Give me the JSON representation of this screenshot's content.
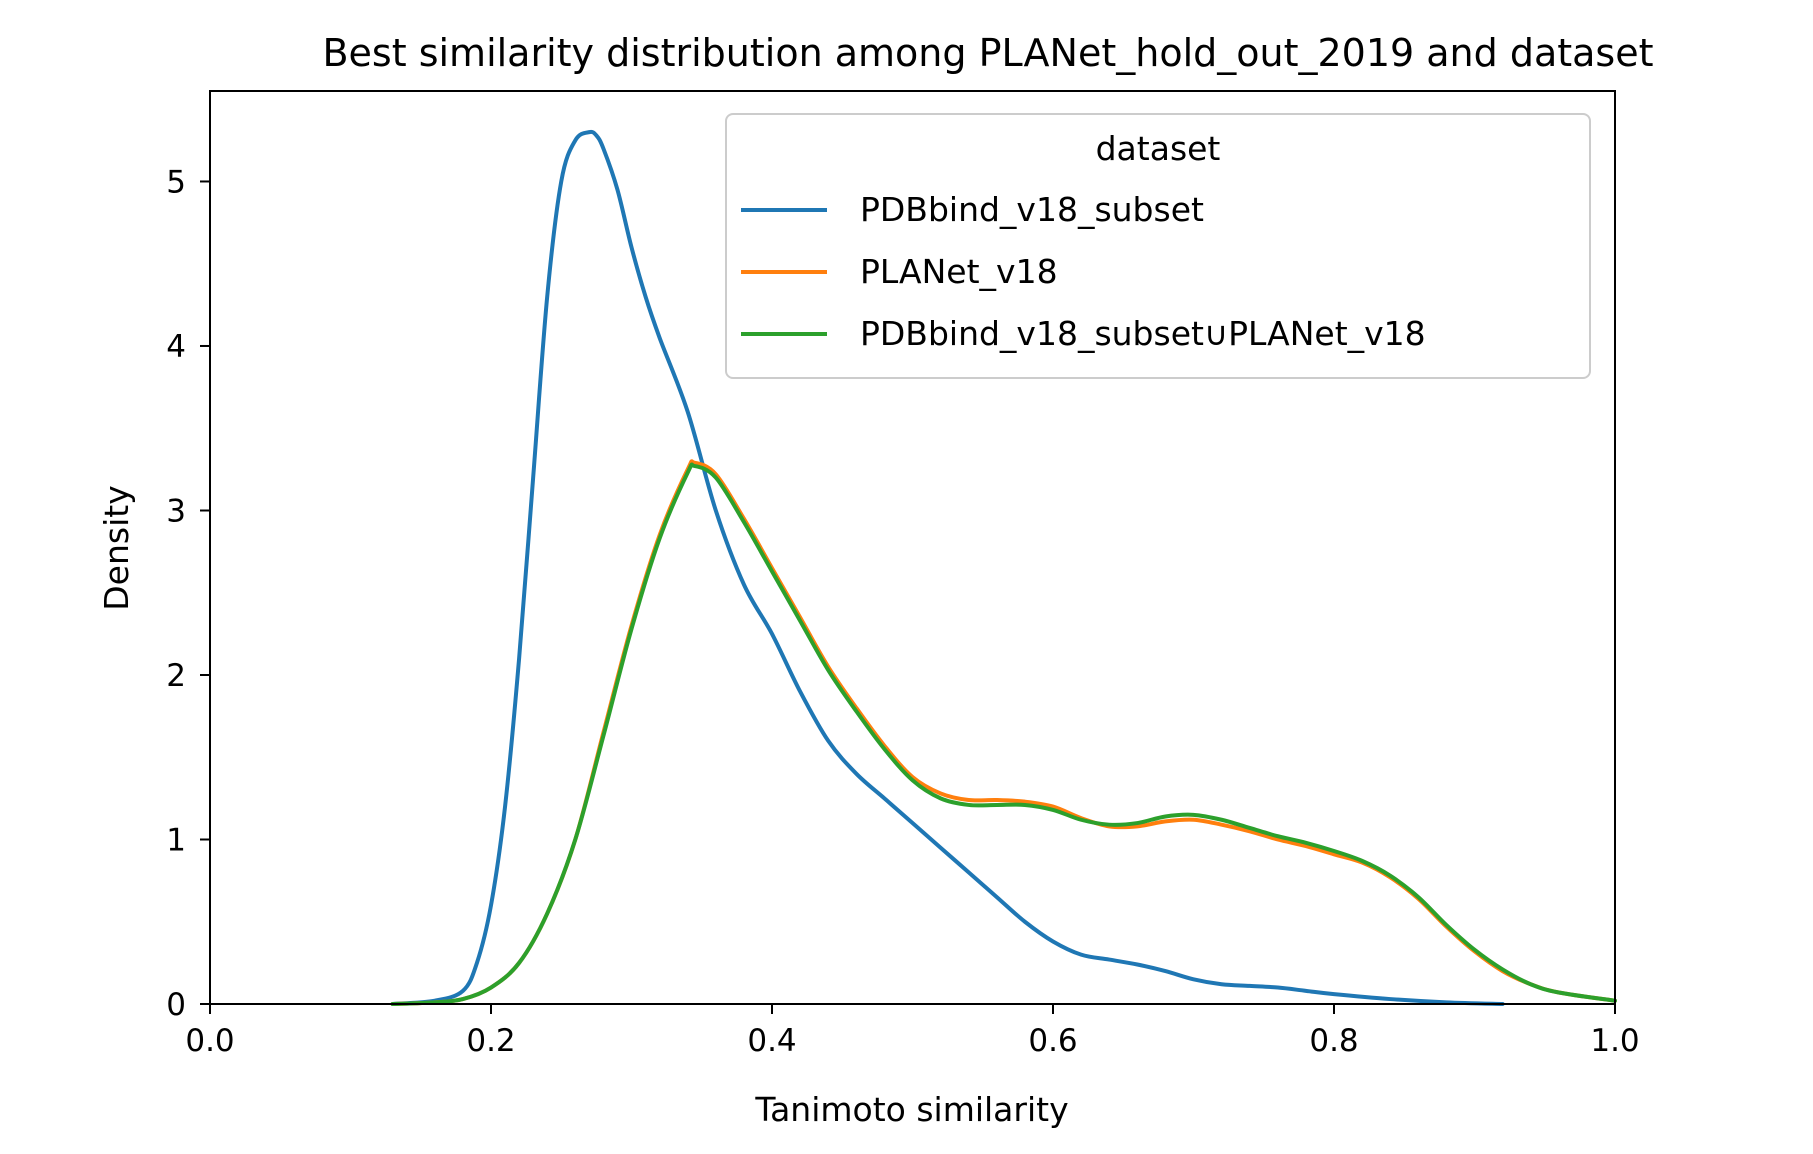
{
  "chart_data": {
    "type": "line",
    "title": "Best similarity distribution among PLANet_hold_out_2019 and dataset",
    "xlabel": "Tanimoto similarity",
    "ylabel": "Density",
    "xlim": [
      0.0,
      1.0
    ],
    "ylim": [
      0.0,
      5.55
    ],
    "xticks": [
      0.0,
      0.2,
      0.4,
      0.6,
      0.8,
      1.0
    ],
    "xtick_labels": [
      "0.0",
      "0.2",
      "0.4",
      "0.6",
      "0.8",
      "1.0"
    ],
    "yticks": [
      0,
      1,
      2,
      3,
      4,
      5
    ],
    "ytick_labels": [
      "0",
      "1",
      "2",
      "3",
      "4",
      "5"
    ],
    "grid": false,
    "legend": {
      "title": "dataset",
      "placement": "top-right"
    },
    "series": [
      {
        "name": "PDBbind_v18_subset",
        "color": "#1f77b4",
        "x": [
          0.13,
          0.16,
          0.18,
          0.19,
          0.2,
          0.21,
          0.22,
          0.23,
          0.24,
          0.25,
          0.26,
          0.27,
          0.275,
          0.28,
          0.29,
          0.3,
          0.31,
          0.32,
          0.34,
          0.36,
          0.38,
          0.4,
          0.42,
          0.44,
          0.46,
          0.48,
          0.5,
          0.52,
          0.54,
          0.56,
          0.58,
          0.6,
          0.62,
          0.64,
          0.66,
          0.68,
          0.7,
          0.72,
          0.74,
          0.76,
          0.78,
          0.8,
          0.84,
          0.88,
          0.92
        ],
        "y": [
          0.0,
          0.02,
          0.08,
          0.25,
          0.6,
          1.2,
          2.1,
          3.2,
          4.3,
          5.0,
          5.25,
          5.3,
          5.28,
          5.2,
          4.95,
          4.6,
          4.3,
          4.05,
          3.6,
          3.0,
          2.55,
          2.25,
          1.9,
          1.6,
          1.4,
          1.25,
          1.1,
          0.95,
          0.8,
          0.65,
          0.5,
          0.38,
          0.3,
          0.27,
          0.24,
          0.2,
          0.15,
          0.12,
          0.11,
          0.1,
          0.08,
          0.06,
          0.03,
          0.01,
          0.0
        ]
      },
      {
        "name": "PLANet_v18",
        "color": "#ff7f0e",
        "x": [
          0.13,
          0.16,
          0.18,
          0.2,
          0.22,
          0.24,
          0.26,
          0.28,
          0.3,
          0.32,
          0.34,
          0.345,
          0.36,
          0.38,
          0.4,
          0.42,
          0.44,
          0.46,
          0.48,
          0.5,
          0.52,
          0.54,
          0.56,
          0.58,
          0.6,
          0.62,
          0.64,
          0.66,
          0.68,
          0.7,
          0.72,
          0.74,
          0.76,
          0.78,
          0.8,
          0.82,
          0.84,
          0.86,
          0.88,
          0.9,
          0.92,
          0.94,
          0.96,
          1.0
        ],
        "y": [
          0.0,
          0.01,
          0.03,
          0.1,
          0.25,
          0.55,
          1.0,
          1.65,
          2.3,
          2.85,
          3.25,
          3.29,
          3.22,
          2.95,
          2.65,
          2.35,
          2.05,
          1.8,
          1.57,
          1.38,
          1.28,
          1.24,
          1.24,
          1.23,
          1.2,
          1.13,
          1.08,
          1.08,
          1.11,
          1.12,
          1.09,
          1.05,
          1.0,
          0.96,
          0.91,
          0.86,
          0.77,
          0.64,
          0.47,
          0.32,
          0.2,
          0.12,
          0.07,
          0.02
        ]
      },
      {
        "name": "PDBbind_v18_subset∪PLANet_v18",
        "color": "#2ca02c",
        "x": [
          0.13,
          0.16,
          0.18,
          0.2,
          0.22,
          0.24,
          0.26,
          0.28,
          0.3,
          0.32,
          0.34,
          0.345,
          0.36,
          0.38,
          0.4,
          0.42,
          0.44,
          0.46,
          0.48,
          0.5,
          0.52,
          0.54,
          0.56,
          0.58,
          0.6,
          0.62,
          0.64,
          0.66,
          0.68,
          0.7,
          0.72,
          0.74,
          0.76,
          0.78,
          0.8,
          0.82,
          0.84,
          0.86,
          0.88,
          0.9,
          0.92,
          0.94,
          0.96,
          1.0
        ],
        "y": [
          0.0,
          0.01,
          0.03,
          0.1,
          0.25,
          0.55,
          1.0,
          1.63,
          2.28,
          2.83,
          3.23,
          3.27,
          3.2,
          2.93,
          2.63,
          2.33,
          2.03,
          1.78,
          1.55,
          1.36,
          1.25,
          1.21,
          1.21,
          1.21,
          1.18,
          1.12,
          1.09,
          1.1,
          1.14,
          1.15,
          1.12,
          1.07,
          1.02,
          0.98,
          0.93,
          0.87,
          0.78,
          0.65,
          0.48,
          0.33,
          0.21,
          0.12,
          0.07,
          0.02
        ]
      }
    ]
  }
}
